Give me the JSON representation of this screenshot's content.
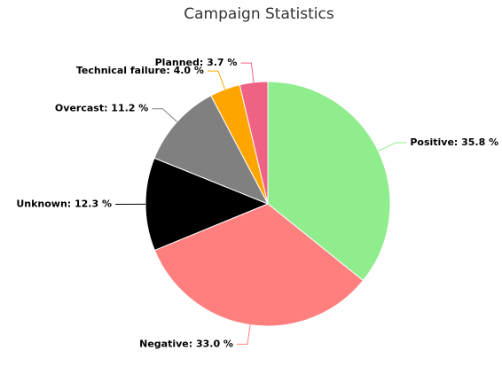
{
  "chart_data": {
    "type": "pie",
    "title": "Campaign Statistics",
    "values": [
      35.8,
      33.0,
      12.3,
      11.2,
      4.0,
      3.7
    ],
    "value_labels": [
      "Positive: 35.8 %",
      "Negative: 33.0 %",
      "Unknown: 12.3 %",
      "Overcast: 11.2 %",
      "Technical failure: 4.0 %",
      "Planned: 3.7 %"
    ],
    "colors": [
      "#90ed8d",
      "#ff7f7f",
      "#000000",
      "#808080",
      "#ffa500",
      "#f06283"
    ]
  }
}
